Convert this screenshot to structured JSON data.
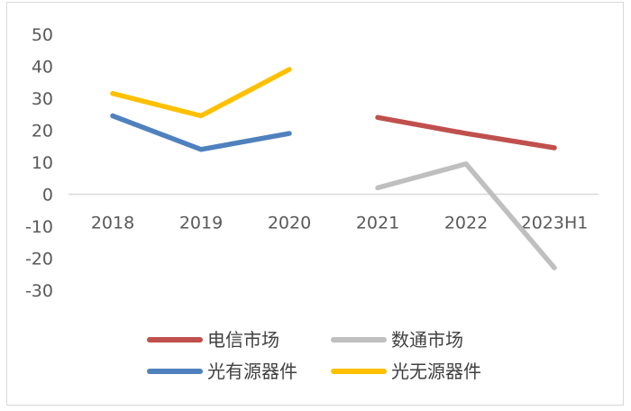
{
  "chart_data": {
    "type": "line",
    "title": "",
    "xlabel": "",
    "ylabel": "",
    "ylim": [
      -30,
      50
    ],
    "yticks": [
      50,
      40,
      30,
      20,
      10,
      0,
      -10,
      -20,
      -30
    ],
    "categories": [
      "2018",
      "2019",
      "2020",
      "2021",
      "2022",
      "2023H1"
    ],
    "grid": false,
    "legend_position": "bottom",
    "series": [
      {
        "name": "电信市场",
        "color": "#c0504d",
        "values": [
          null,
          null,
          null,
          24,
          19,
          14.5
        ]
      },
      {
        "name": "数通市场",
        "color": "#bfbfbf",
        "values": [
          null,
          null,
          null,
          2,
          9.5,
          -23
        ]
      },
      {
        "name": "光有源器件",
        "color": "#4f81bd",
        "values": [
          24.5,
          14,
          19,
          null,
          null,
          null
        ]
      },
      {
        "name": "光无源器件",
        "color": "#ffc000",
        "values": [
          31.5,
          24.5,
          39,
          null,
          null,
          null
        ]
      }
    ]
  }
}
